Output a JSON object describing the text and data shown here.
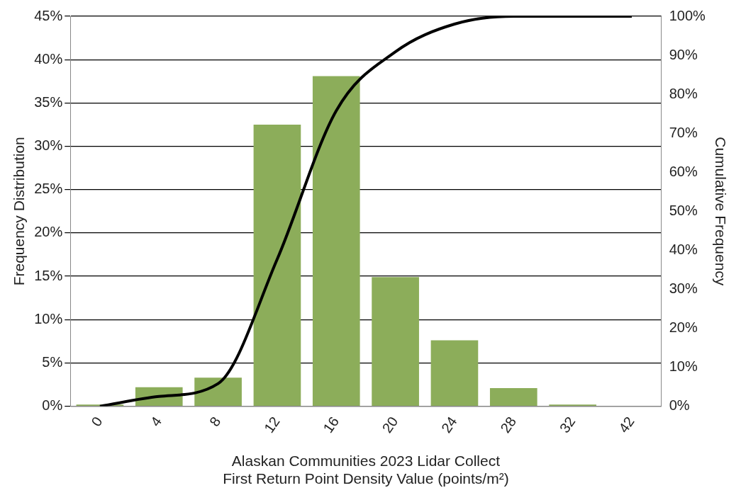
{
  "chart_data": {
    "type": "bar",
    "xlabel": "Alaskan Communities 2023 Lidar Collect\nFirst Return Point Density Value (points/m²)",
    "ylabel": "Frequency Distribution",
    "y2label": "Cumulative Frequency",
    "categories": [
      "0",
      "4",
      "8",
      "12",
      "16",
      "20",
      "24",
      "28",
      "32",
      "42"
    ],
    "series": [
      {
        "color": "#8cad5a",
        "values": [
          0.2,
          2.2,
          3.3,
          32.5,
          38.1,
          14.9,
          7.6,
          2.1,
          0.2,
          0
        ]
      },
      {
        "type": "line",
        "axis": "y2",
        "color": "#000000",
        "values": [
          0,
          2.5,
          5.8,
          37.7,
          75.8,
          90.9,
          98,
          100,
          100,
          100
        ]
      }
    ],
    "ylim": [
      0,
      45
    ],
    "yticks": [
      {
        "value": 0,
        "label": "0%"
      },
      {
        "value": 5,
        "label": "5%"
      },
      {
        "value": 10,
        "label": "10%"
      },
      {
        "value": 15,
        "label": "15%"
      },
      {
        "value": 20,
        "label": "20%"
      },
      {
        "value": 25,
        "label": "25%"
      },
      {
        "value": 30,
        "label": "30%"
      },
      {
        "value": 35,
        "label": "35%"
      },
      {
        "value": 40,
        "label": "40%"
      },
      {
        "value": 45,
        "label": "45%"
      }
    ],
    "y2lim": [
      0,
      100
    ],
    "y2ticks": [
      {
        "value": 0,
        "label": "0%"
      },
      {
        "value": 10,
        "label": "10%"
      },
      {
        "value": 20,
        "label": "20%"
      },
      {
        "value": 30,
        "label": "30%"
      },
      {
        "value": 40,
        "label": "40%"
      },
      {
        "value": 50,
        "label": "50%"
      },
      {
        "value": 60,
        "label": "60%"
      },
      {
        "value": 70,
        "label": "70%"
      },
      {
        "value": 80,
        "label": "80%"
      },
      {
        "value": 90,
        "label": "90%"
      },
      {
        "value": 100,
        "label": "100%"
      }
    ],
    "grid": "y",
    "legend": false,
    "marker": "none"
  }
}
